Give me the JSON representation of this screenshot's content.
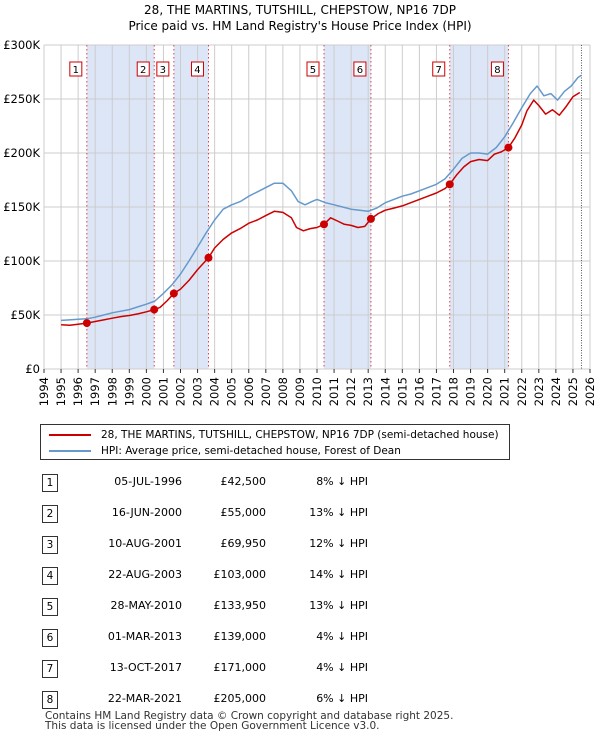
{
  "chart_data": {
    "type": "line",
    "title": "28, THE MARTINS, TUTSHILL, CHEPSTOW, NP16 7DP",
    "subtitle": "Price paid vs. HM Land Registry's House Price Index (HPI)",
    "xlabel": "",
    "ylabel": "",
    "xlim": [
      1994,
      2026
    ],
    "ylim": [
      0,
      300000
    ],
    "y_ticks": [
      0,
      50000,
      100000,
      150000,
      200000,
      250000,
      300000
    ],
    "y_tick_labels": [
      "£0",
      "£50K",
      "£100K",
      "£150K",
      "£200K",
      "£250K",
      "£300K"
    ],
    "x_ticks": [
      1994,
      1995,
      1996,
      1997,
      1998,
      1999,
      2000,
      2001,
      2002,
      2003,
      2004,
      2005,
      2006,
      2007,
      2008,
      2009,
      2010,
      2011,
      2012,
      2013,
      2014,
      2015,
      2016,
      2017,
      2018,
      2019,
      2020,
      2021,
      2022,
      2023,
      2024,
      2025,
      2026
    ],
    "x_tick_labels": [
      "1994",
      "1995",
      "1996",
      "1997",
      "1998",
      "1999",
      "2000",
      "2001",
      "2002",
      "2003",
      "2004",
      "2005",
      "2006",
      "2007",
      "2008",
      "2009",
      "2010",
      "2011",
      "2012",
      "2013",
      "2014",
      "2015",
      "2016",
      "2017",
      "2018",
      "2019",
      "2020",
      "2021",
      "2022",
      "2023",
      "2024",
      "2025",
      "2026"
    ],
    "grid": true,
    "data_start": 1995.0,
    "data_end": 2025.5,
    "series": [
      {
        "name": "28, THE MARTINS, TUTSHILL, CHEPSTOW, NP16 7DP (semi-detached house)",
        "color": "#cc0000",
        "x": [
          1995.0,
          1995.5,
          1996.0,
          1996.51,
          1997.0,
          1997.5,
          1998.0,
          1998.5,
          1999.0,
          1999.5,
          2000.0,
          2000.46,
          2000.8,
          2001.2,
          2001.61,
          2002.0,
          2002.5,
          2003.0,
          2003.64,
          2004.0,
          2004.5,
          2005.0,
          2005.5,
          2006.0,
          2006.5,
          2007.0,
          2007.5,
          2008.0,
          2008.5,
          2008.8,
          2009.2,
          2009.6,
          2010.0,
          2010.41,
          2010.8,
          2011.2,
          2011.6,
          2012.0,
          2012.4,
          2012.8,
          2013.16,
          2013.6,
          2014.0,
          2014.5,
          2015.0,
          2015.5,
          2016.0,
          2016.5,
          2017.0,
          2017.5,
          2017.78,
          2018.2,
          2018.6,
          2019.0,
          2019.5,
          2020.0,
          2020.4,
          2020.8,
          2021.22,
          2021.6,
          2022.0,
          2022.3,
          2022.7,
          2023.0,
          2023.4,
          2023.8,
          2024.2,
          2024.6,
          2025.0,
          2025.4
        ],
        "values": [
          41000,
          40500,
          41500,
          42500,
          44000,
          45500,
          47000,
          48500,
          49500,
          51000,
          53000,
          55000,
          57000,
          63000,
          69950,
          74000,
          82000,
          92000,
          103000,
          112000,
          120000,
          126000,
          130000,
          135000,
          138000,
          142000,
          146000,
          145000,
          140000,
          131000,
          128000,
          130000,
          131000,
          133950,
          140000,
          137000,
          134000,
          133000,
          131000,
          132000,
          139000,
          144000,
          147000,
          149000,
          151000,
          154000,
          157000,
          160000,
          163000,
          167000,
          171000,
          180000,
          187000,
          192000,
          194000,
          193000,
          199000,
          201000,
          205000,
          214000,
          226000,
          239000,
          249000,
          244000,
          236000,
          240000,
          235000,
          243000,
          252000,
          256000
        ]
      },
      {
        "name": "HPI: Average price, semi-detached house, Forest of Dean",
        "color": "#6699cc",
        "x": [
          1995.0,
          1995.5,
          1996.0,
          1996.5,
          1997.0,
          1997.5,
          1998.0,
          1998.5,
          1999.0,
          1999.5,
          2000.0,
          2000.5,
          2001.0,
          2001.5,
          2002.0,
          2002.5,
          2003.0,
          2003.5,
          2004.0,
          2004.5,
          2005.0,
          2005.5,
          2006.0,
          2006.5,
          2007.0,
          2007.5,
          2008.0,
          2008.5,
          2008.9,
          2009.3,
          2009.7,
          2010.0,
          2010.5,
          2011.0,
          2011.5,
          2012.0,
          2012.5,
          2013.0,
          2013.5,
          2014.0,
          2014.5,
          2015.0,
          2015.5,
          2016.0,
          2016.5,
          2017.0,
          2017.5,
          2018.0,
          2018.5,
          2019.0,
          2019.5,
          2020.0,
          2020.5,
          2021.0,
          2021.5,
          2022.0,
          2022.5,
          2022.9,
          2023.3,
          2023.7,
          2024.1,
          2024.5,
          2024.9,
          2025.3,
          2025.5
        ],
        "values": [
          45000,
          45500,
          46000,
          46500,
          48000,
          50000,
          52000,
          53500,
          55000,
          57500,
          60000,
          63000,
          70000,
          78000,
          88000,
          100000,
          113000,
          126000,
          138000,
          148000,
          152000,
          155000,
          160000,
          164000,
          168000,
          172000,
          172000,
          165000,
          155000,
          152000,
          155000,
          157000,
          154000,
          152000,
          150000,
          148000,
          147000,
          146000,
          149000,
          154000,
          157000,
          160000,
          162000,
          165000,
          168000,
          171000,
          176000,
          185000,
          195000,
          200000,
          200000,
          199000,
          205000,
          215000,
          228000,
          242000,
          255000,
          262000,
          253000,
          255000,
          249000,
          257000,
          262000,
          270000,
          272000
        ]
      }
    ],
    "sale_markers": [
      {
        "label": "1",
        "x": 1996.51,
        "value": 42500
      },
      {
        "label": "2",
        "x": 2000.46,
        "value": 55000
      },
      {
        "label": "3",
        "x": 2001.61,
        "value": 69950
      },
      {
        "label": "4",
        "x": 2003.64,
        "value": 103000
      },
      {
        "label": "5",
        "x": 2010.41,
        "value": 133950
      },
      {
        "label": "6",
        "x": 2013.16,
        "value": 139000
      },
      {
        "label": "7",
        "x": 2017.78,
        "value": 171000
      },
      {
        "label": "8",
        "x": 2021.22,
        "value": 205000
      }
    ],
    "shaded_spans": [
      [
        1996.51,
        2000.46
      ],
      [
        2001.61,
        2003.64
      ],
      [
        2010.41,
        2013.16
      ],
      [
        2017.78,
        2021.22
      ]
    ],
    "colors": {
      "property": "#cc0000",
      "hpi": "#6699cc",
      "shade": "#dde6f7",
      "grid": "#cccccc"
    }
  },
  "legend": {
    "property_label": "28, THE MARTINS, TUTSHILL, CHEPSTOW, NP16 7DP (semi-detached house)",
    "hpi_label": "HPI: Average price, semi-detached house, Forest of Dean"
  },
  "sales": [
    {
      "num": "1",
      "date": "05-JUL-1996",
      "price": "£42,500",
      "hpi": "8% ↓ HPI"
    },
    {
      "num": "2",
      "date": "16-JUN-2000",
      "price": "£55,000",
      "hpi": "13% ↓ HPI"
    },
    {
      "num": "3",
      "date": "10-AUG-2001",
      "price": "£69,950",
      "hpi": "12% ↓ HPI"
    },
    {
      "num": "4",
      "date": "22-AUG-2003",
      "price": "£103,000",
      "hpi": "14% ↓ HPI"
    },
    {
      "num": "5",
      "date": "28-MAY-2010",
      "price": "£133,950",
      "hpi": "13% ↓ HPI"
    },
    {
      "num": "6",
      "date": "01-MAR-2013",
      "price": "£139,000",
      "hpi": "4% ↓ HPI"
    },
    {
      "num": "7",
      "date": "13-OCT-2017",
      "price": "£171,000",
      "hpi": "4% ↓ HPI"
    },
    {
      "num": "8",
      "date": "22-MAR-2021",
      "price": "£205,000",
      "hpi": "6% ↓ HPI"
    }
  ],
  "footer": {
    "line1": "Contains HM Land Registry data © Crown copyright and database right 2025.",
    "line2": "This data is licensed under the Open Government Licence v3.0."
  }
}
